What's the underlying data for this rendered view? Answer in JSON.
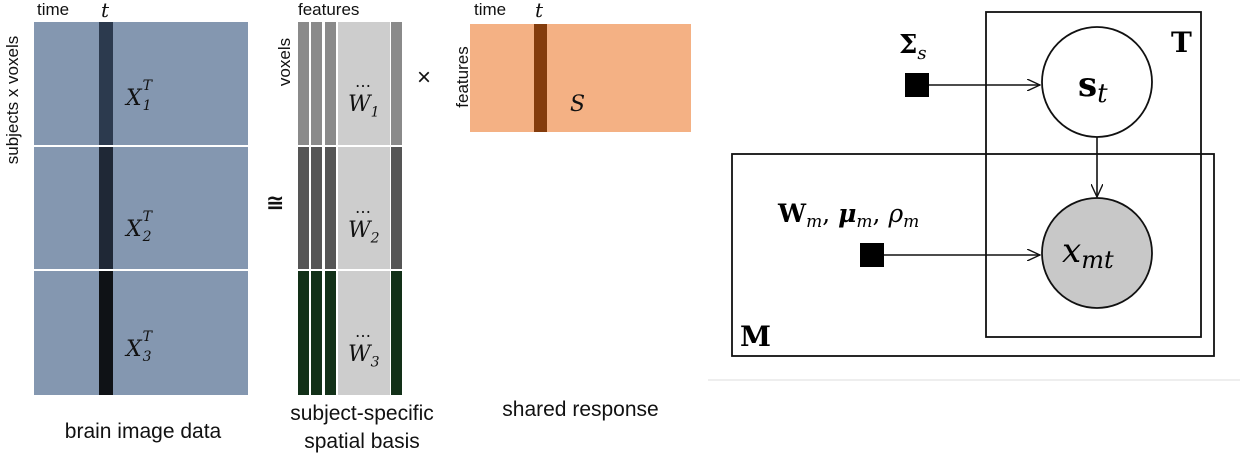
{
  "left": {
    "time_label": "time",
    "t_label": "t",
    "y_axis_label": "subjects x voxels",
    "blocks": [
      {
        "symbol": "X",
        "sup": "T",
        "sub": "1",
        "stripe_color": "#2c3a4e"
      },
      {
        "symbol": "X",
        "sup": "T",
        "sub": "2",
        "stripe_color": "#1f2836"
      },
      {
        "symbol": "X",
        "sup": "T",
        "sub": "3",
        "stripe_color": "#0f1216"
      }
    ],
    "block_color": "#8497b0",
    "caption": "brain image data"
  },
  "approx_symbol": "≅",
  "middle": {
    "features_label": "features",
    "voxels_label": "voxels",
    "dots": "…",
    "blocks": [
      {
        "symbol": "W",
        "sub": "1",
        "col_color": "#8a8a8a"
      },
      {
        "symbol": "W",
        "sub": "2",
        "col_color": "#555555"
      },
      {
        "symbol": "W",
        "sub": "3",
        "col_color": "#123018"
      }
    ],
    "caption_line1": "subject-specific",
    "caption_line2": "spatial basis"
  },
  "times_symbol": "×",
  "right": {
    "time_label": "time",
    "t_label": "t",
    "features_label": "features",
    "symbol": "S",
    "block_color": "#f4b184",
    "stripe_color": "#843c0c",
    "caption": "shared response"
  },
  "graphical_model": {
    "sigma_label": "Σ",
    "sigma_sub": "s",
    "s_node": "s",
    "s_sub": "t",
    "x_node": "x",
    "x_sub": "mt",
    "params_label": "W",
    "params_label_rest": "m",
    "mu_label": "μ",
    "mu_sub": "m",
    "rho_label": "ρ",
    "rho_sub": "m",
    "plate_T": "T",
    "plate_M": "M",
    "observed_fill": "#c8c8c8"
  }
}
